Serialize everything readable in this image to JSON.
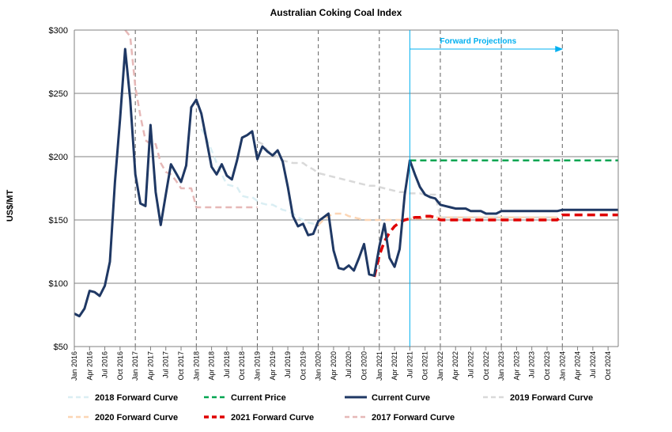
{
  "chart_data": {
    "type": "line",
    "title": "Australian Coking Coal Index",
    "ylabel": "US$/MT",
    "xlabel": "",
    "ylim": [
      50,
      300
    ],
    "y_ticks": [
      "$50",
      "$100",
      "$150",
      "$200",
      "$250",
      "$300"
    ],
    "y_tick_values": [
      50,
      100,
      150,
      200,
      250,
      300
    ],
    "x_range": [
      "2016-01",
      "2024-12"
    ],
    "x_tick_labels": [
      "Jan 2016",
      "Apr 2016",
      "Jul 2016",
      "Oct 2016",
      "Jan 2017",
      "Apr 2017",
      "Jul 2017",
      "Oct 2017",
      "Jan 2018",
      "Apr 2018",
      "Jul 2018",
      "Oct 2018",
      "Jan 2019",
      "Apr 2019",
      "Jul 2019",
      "Oct 2019",
      "Jan 2020",
      "Apr 2020",
      "Jul 2020",
      "Oct 2020",
      "Jan 2021",
      "Apr 2021",
      "Jul 2021",
      "Oct 2021",
      "Jan 2022",
      "Apr 2022",
      "Jul 2022",
      "Oct 2022",
      "Jan 2023",
      "Apr 2023",
      "Jul 2023",
      "Oct 2023",
      "Jan 2024",
      "Apr 2024",
      "Jul 2024",
      "Oct 2024"
    ],
    "grid": {
      "horizontal": true,
      "vertical_dashed_yearly": true
    },
    "annotation": {
      "text": "Forward Projections",
      "from": "2021-07",
      "to": "2024-01",
      "color": "#00B0F0"
    },
    "legend_position": "bottom",
    "series": [
      {
        "name": "2017 Forward Curve",
        "color": "#E6B8B7",
        "style": "dashed",
        "x": [
          "2016-11",
          "2016-12",
          "2017-01",
          "2017-02",
          "2017-03",
          "2017-04",
          "2017-05",
          "2017-06",
          "2017-07",
          "2017-08",
          "2017-09",
          "2017-10",
          "2017-11",
          "2017-12",
          "2018-01",
          "2018-02",
          "2018-03",
          "2018-04",
          "2018-05",
          "2018-06",
          "2018-07",
          "2018-08",
          "2018-09",
          "2018-10",
          "2018-11",
          "2018-12",
          "2019-01"
        ],
        "y": [
          300,
          295,
          255,
          232,
          213,
          210,
          210,
          195,
          188,
          186,
          181,
          175,
          175,
          175,
          160,
          160,
          160,
          160,
          160,
          160,
          160,
          160,
          160,
          160,
          160,
          160,
          160
        ]
      },
      {
        "name": "2018 Forward Curve",
        "color": "#DAEEF3",
        "style": "dashed",
        "x": [
          "2018-02",
          "2018-03",
          "2018-04",
          "2018-05",
          "2018-06",
          "2018-07",
          "2018-08",
          "2018-09",
          "2018-10",
          "2018-11",
          "2018-12",
          "2019-01",
          "2019-02",
          "2019-03",
          "2019-04",
          "2019-05",
          "2019-06",
          "2019-07",
          "2019-08",
          "2019-09",
          "2019-10",
          "2019-11",
          "2019-12",
          "2020-01"
        ],
        "y": [
          222,
          215,
          205,
          195,
          186,
          178,
          177,
          176,
          169,
          168,
          168,
          165,
          163,
          162,
          162,
          160,
          158,
          157,
          155,
          152,
          150,
          148,
          147,
          147
        ]
      },
      {
        "name": "2019 Forward Curve",
        "color": "#D9D9D9",
        "style": "dashed",
        "x": [
          "2019-01",
          "2019-02",
          "2019-03",
          "2019-04",
          "2019-05",
          "2019-06",
          "2019-07",
          "2019-08",
          "2019-09",
          "2019-10",
          "2019-11",
          "2019-12",
          "2020-01",
          "2020-02",
          "2020-03",
          "2020-04",
          "2020-05",
          "2020-06",
          "2020-07",
          "2020-08",
          "2020-09",
          "2020-10",
          "2020-11",
          "2020-12",
          "2021-01",
          "2021-02",
          "2021-03",
          "2021-04",
          "2021-05",
          "2021-06",
          "2021-07",
          "2021-08",
          "2021-09",
          "2021-10",
          "2021-11",
          "2021-12",
          "2022-01",
          "2022-02",
          "2022-03",
          "2022-04",
          "2022-05",
          "2022-06",
          "2022-07",
          "2022-08",
          "2022-09",
          "2022-10",
          "2022-11",
          "2022-12",
          "2023-01",
          "2023-02",
          "2023-03",
          "2023-04",
          "2023-05",
          "2023-06",
          "2023-07",
          "2023-08",
          "2023-09",
          "2023-10",
          "2023-11",
          "2023-12"
        ],
        "y": [
          212,
          210,
          205,
          202,
          200,
          197,
          196,
          195,
          195,
          195,
          192,
          190,
          187,
          186,
          185,
          184,
          183,
          182,
          181,
          180,
          179,
          178,
          177,
          177,
          176,
          175,
          174,
          173,
          172,
          172,
          171,
          171,
          171,
          170,
          170,
          170,
          152,
          152,
          152,
          152,
          152,
          152,
          152,
          152,
          152,
          152,
          152,
          152,
          152,
          152,
          152,
          152,
          152,
          152,
          152,
          152,
          152,
          152,
          152,
          152
        ]
      },
      {
        "name": "2020 Forward Curve",
        "color": "#FCD5B4",
        "style": "dashed",
        "x": [
          "2020-01",
          "2020-02",
          "2020-03",
          "2020-04",
          "2020-05",
          "2020-06",
          "2020-07",
          "2020-08",
          "2020-09",
          "2020-10",
          "2020-11",
          "2020-12",
          "2021-01",
          "2021-02",
          "2021-03",
          "2021-04",
          "2021-05",
          "2021-06",
          "2021-07",
          "2021-08",
          "2021-09",
          "2021-10",
          "2021-11",
          "2021-12",
          "2022-01",
          "2022-02",
          "2022-03",
          "2022-04",
          "2022-05",
          "2022-06",
          "2022-07",
          "2022-08",
          "2022-09",
          "2022-10",
          "2022-11",
          "2022-12",
          "2023-01",
          "2023-02",
          "2023-03",
          "2023-04",
          "2023-05",
          "2023-06",
          "2023-07",
          "2023-08",
          "2023-09",
          "2023-10",
          "2023-11",
          "2023-12"
        ],
        "y": [
          146,
          150,
          153,
          155,
          155,
          155,
          153,
          152,
          151,
          150,
          150,
          150,
          150,
          150,
          150,
          150,
          150,
          150,
          151,
          151,
          151,
          151,
          151,
          152,
          152,
          152,
          152,
          152,
          152,
          152,
          152,
          152,
          152,
          152,
          152,
          152,
          152,
          152,
          152,
          152,
          152,
          152,
          152,
          152,
          152,
          152,
          152,
          152
        ]
      },
      {
        "name": "2021 Forward Curve",
        "color": "#E00000",
        "style": "dashed-thick",
        "x": [
          "2020-12",
          "2021-01",
          "2021-02",
          "2021-03",
          "2021-04",
          "2021-05",
          "2021-06",
          "2021-07",
          "2021-08",
          "2021-09",
          "2021-10",
          "2021-11",
          "2021-12",
          "2022-01",
          "2022-02",
          "2022-03",
          "2022-04",
          "2022-05",
          "2022-06",
          "2022-07",
          "2022-08",
          "2022-09",
          "2022-10",
          "2022-11",
          "2022-12",
          "2023-01",
          "2023-02",
          "2023-03",
          "2023-04",
          "2023-05",
          "2023-06",
          "2023-07",
          "2023-08",
          "2023-09",
          "2023-10",
          "2023-11",
          "2023-12",
          "2024-01",
          "2024-02",
          "2024-03",
          "2024-04",
          "2024-05",
          "2024-06",
          "2024-07",
          "2024-08",
          "2024-09",
          "2024-10",
          "2024-11",
          "2024-12"
        ],
        "y": [
          105,
          122,
          133,
          140,
          145,
          148,
          150,
          151,
          152,
          152,
          153,
          153,
          152,
          150,
          150,
          150,
          150,
          150,
          150,
          150,
          150,
          150,
          150,
          150,
          150,
          150,
          150,
          150,
          150,
          150,
          150,
          150,
          150,
          150,
          150,
          150,
          150,
          154,
          154,
          154,
          154,
          154,
          154,
          154,
          154,
          154,
          154,
          154,
          154
        ]
      },
      {
        "name": "Current Price",
        "color": "#00A550",
        "style": "dashed",
        "x": [
          "2021-07",
          "2024-12"
        ],
        "y": [
          197,
          197
        ]
      },
      {
        "name": "Current Curve",
        "color": "#1F3864",
        "style": "solid",
        "x": [
          "2016-01",
          "2016-02",
          "2016-03",
          "2016-04",
          "2016-05",
          "2016-06",
          "2016-07",
          "2016-08",
          "2016-09",
          "2016-10",
          "2016-11",
          "2016-12",
          "2017-01",
          "2017-02",
          "2017-03",
          "2017-04",
          "2017-05",
          "2017-06",
          "2017-07",
          "2017-08",
          "2017-09",
          "2017-10",
          "2017-11",
          "2017-12",
          "2018-01",
          "2018-02",
          "2018-03",
          "2018-04",
          "2018-05",
          "2018-06",
          "2018-07",
          "2018-08",
          "2018-09",
          "2018-10",
          "2018-11",
          "2018-12",
          "2019-01",
          "2019-02",
          "2019-03",
          "2019-04",
          "2019-05",
          "2019-06",
          "2019-07",
          "2019-08",
          "2019-09",
          "2019-10",
          "2019-11",
          "2019-12",
          "2020-01",
          "2020-02",
          "2020-03",
          "2020-04",
          "2020-05",
          "2020-06",
          "2020-07",
          "2020-08",
          "2020-09",
          "2020-10",
          "2020-11",
          "2020-12",
          "2021-01",
          "2021-02",
          "2021-03",
          "2021-04",
          "2021-05",
          "2021-06",
          "2021-07",
          "2021-08",
          "2021-09",
          "2021-10",
          "2021-11",
          "2021-12",
          "2022-01",
          "2022-02",
          "2022-03",
          "2022-04",
          "2022-05",
          "2022-06",
          "2022-07",
          "2022-08",
          "2022-09",
          "2022-10",
          "2022-11",
          "2022-12",
          "2023-01",
          "2023-02",
          "2023-03",
          "2023-04",
          "2023-05",
          "2023-06",
          "2023-07",
          "2023-08",
          "2023-09",
          "2023-10",
          "2023-11",
          "2023-12",
          "2024-01",
          "2024-02",
          "2024-03",
          "2024-04",
          "2024-05",
          "2024-06",
          "2024-07",
          "2024-08",
          "2024-09",
          "2024-10",
          "2024-11",
          "2024-12"
        ],
        "y": [
          76,
          74,
          80,
          94,
          93,
          90,
          98,
          117,
          180,
          230,
          285,
          245,
          186,
          163,
          161,
          225,
          172,
          146,
          170,
          194,
          187,
          180,
          193,
          239,
          245,
          234,
          213,
          192,
          186,
          194,
          185,
          182,
          197,
          215,
          217,
          220,
          198,
          208,
          204,
          201,
          205,
          196,
          176,
          153,
          145,
          147,
          138,
          139,
          149,
          152,
          155,
          126,
          112,
          111,
          114,
          110,
          120,
          131,
          107,
          106,
          129,
          147,
          120,
          113,
          127,
          170,
          197,
          186,
          176,
          170,
          168,
          167,
          162,
          161,
          160,
          159,
          159,
          159,
          157,
          157,
          157,
          155,
          155,
          155,
          157,
          157,
          157,
          157,
          157,
          157,
          157,
          157,
          157,
          157,
          157,
          157,
          158,
          158,
          158,
          158,
          158,
          158,
          158,
          158,
          158,
          158,
          158,
          158
        ]
      }
    ],
    "legend": [
      {
        "name": "2018 Forward Curve",
        "color": "#DAEEF3",
        "style": "dashed"
      },
      {
        "name": "Current Price",
        "color": "#00A550",
        "style": "dashed"
      },
      {
        "name": "Current Curve",
        "color": "#1F3864",
        "style": "solid"
      },
      {
        "name": "2019 Forward Curve",
        "color": "#D9D9D9",
        "style": "dashed"
      },
      {
        "name": "2020 Forward Curve",
        "color": "#FCD5B4",
        "style": "dashed"
      },
      {
        "name": "2021 Forward Curve",
        "color": "#E00000",
        "style": "dashed-thick"
      },
      {
        "name": "2017 Forward Curve",
        "color": "#E6B8B7",
        "style": "dashed"
      }
    ]
  }
}
